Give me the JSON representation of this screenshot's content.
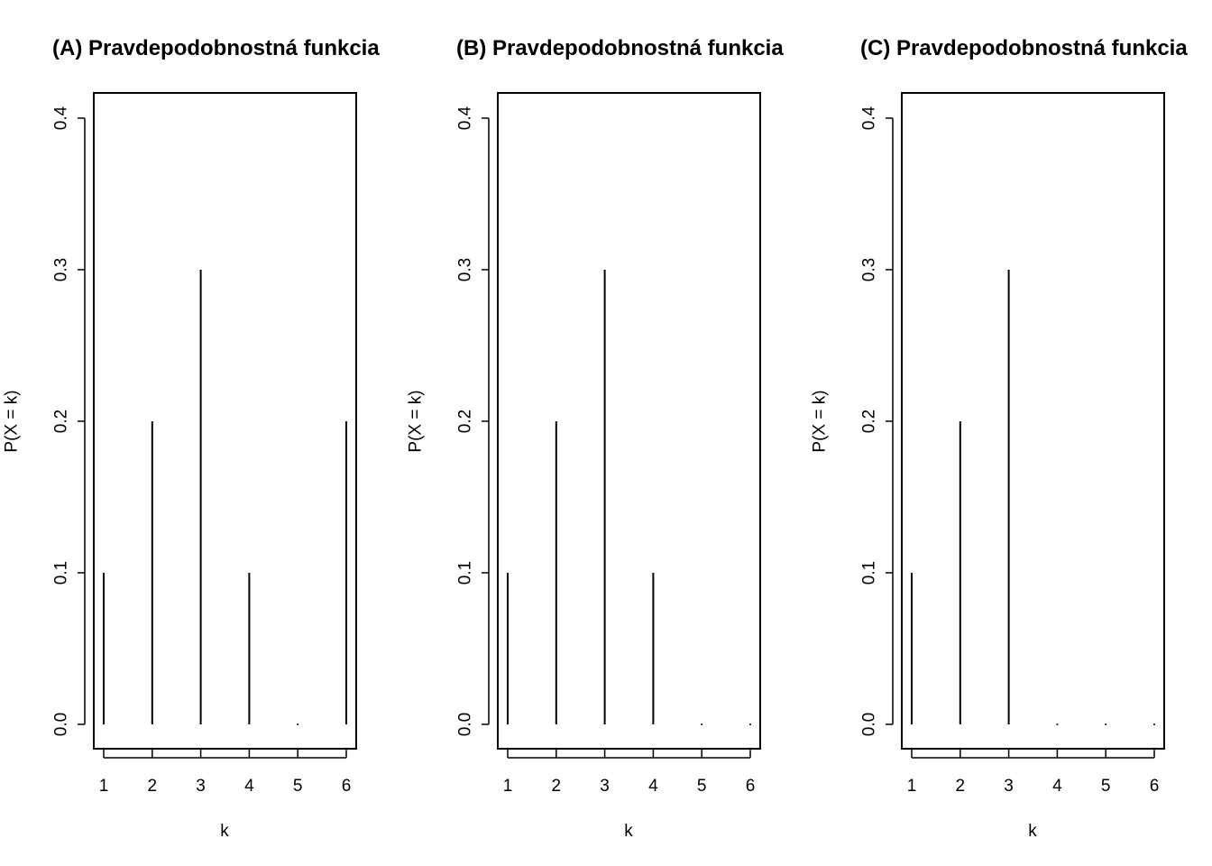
{
  "chart_data": [
    {
      "type": "bar",
      "title": "(A) Pravdepodobnostná funkcia",
      "xlabel": "k",
      "ylabel": "P(X = k)",
      "categories": [
        "1",
        "2",
        "3",
        "4",
        "5",
        "6"
      ],
      "x": [
        1,
        2,
        3,
        4,
        5,
        6
      ],
      "values": [
        0.1,
        0.2,
        0.3,
        0.1,
        0.0,
        0.2
      ],
      "ylim": [
        0,
        0.4
      ],
      "yticks": [
        "0.0",
        "0.1",
        "0.2",
        "0.3",
        "0.4"
      ],
      "bar_style": "vertical lines"
    },
    {
      "type": "bar",
      "title": "(B) Pravdepodobnostná funkcia",
      "xlabel": "k",
      "ylabel": "P(X = k)",
      "categories": [
        "1",
        "2",
        "3",
        "4",
        "5",
        "6"
      ],
      "x": [
        1,
        2,
        3,
        4,
        5,
        6
      ],
      "values": [
        0.1,
        0.2,
        0.3,
        0.1,
        0.0,
        0.0
      ],
      "ylim": [
        0,
        0.4
      ],
      "yticks": [
        "0.0",
        "0.1",
        "0.2",
        "0.3",
        "0.4"
      ],
      "bar_style": "vertical lines"
    },
    {
      "type": "bar",
      "title": "(C) Pravdepodobnostná funkcia",
      "xlabel": "k",
      "ylabel": "P(X = k)",
      "categories": [
        "1",
        "2",
        "3",
        "4",
        "5",
        "6"
      ],
      "x": [
        1,
        2,
        3,
        4,
        5,
        6
      ],
      "values": [
        0.1,
        0.2,
        0.3,
        0.0,
        0.0,
        0.0
      ],
      "ylim": [
        0,
        0.4
      ],
      "yticks": [
        "0.0",
        "0.1",
        "0.2",
        "0.3",
        "0.4"
      ],
      "bar_style": "vertical lines"
    }
  ]
}
